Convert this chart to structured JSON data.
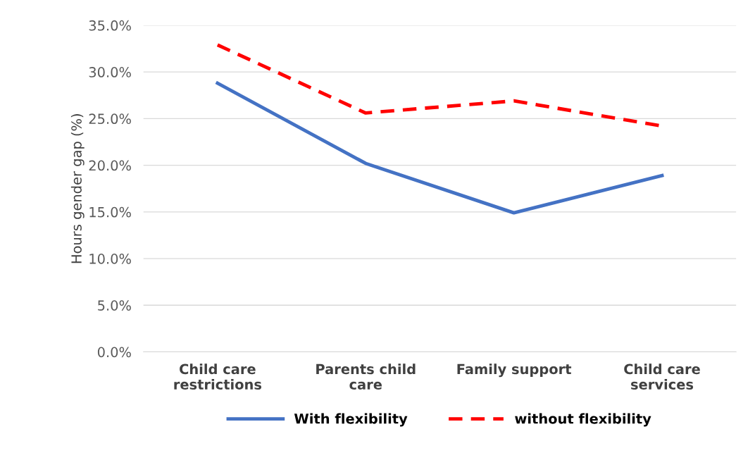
{
  "chart_data": {
    "type": "line",
    "ylabel": "Hours gender gap (%)",
    "categories": [
      "Child care\nrestrictions",
      "Parents child\ncare",
      "Family support",
      "Child care\nservices"
    ],
    "series": [
      {
        "name": "With flexibility",
        "color": "#4472c4",
        "line_style": "solid",
        "values": [
          28.8,
          20.2,
          14.9,
          18.9
        ]
      },
      {
        "name": "without flexibility",
        "color": "#ff0000",
        "line_style": "dashed",
        "values": [
          32.9,
          25.6,
          26.9,
          24.2
        ]
      }
    ],
    "ylim": [
      0,
      35
    ],
    "yticks": [
      {
        "value": 0,
        "label": "0.0%"
      },
      {
        "value": 5,
        "label": "5.0%"
      },
      {
        "value": 10,
        "label": "10.0%"
      },
      {
        "value": 15,
        "label": "15.0%"
      },
      {
        "value": 20,
        "label": "20.0%"
      },
      {
        "value": 25,
        "label": "25.0%"
      },
      {
        "value": 30,
        "label": "30.0%"
      },
      {
        "value": 35,
        "label": "35.0%"
      }
    ],
    "grid": "y",
    "legend": "bottom",
    "marker": "none"
  }
}
